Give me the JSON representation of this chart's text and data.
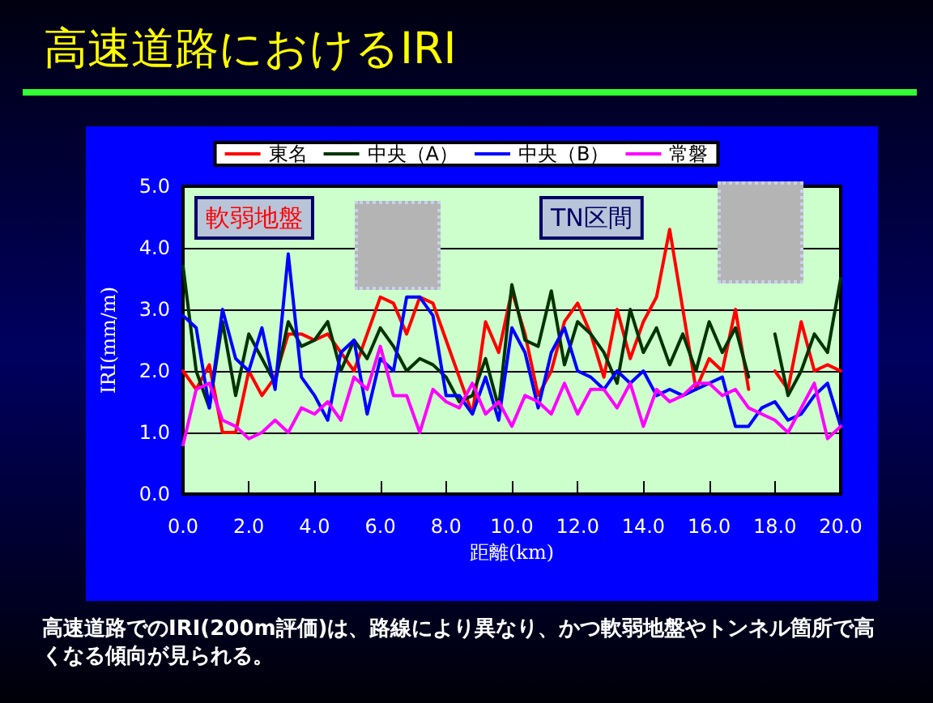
{
  "chart_data": {
    "type": "line",
    "title": "高速道路におけるIRI",
    "xlabel": "距離(km)",
    "ylabel": "IRI(mm/m)",
    "xlim": [
      0,
      20
    ],
    "xticks": [
      {
        "value": 0,
        "label": "0.0"
      },
      {
        "value": 2,
        "label": "2.0"
      },
      {
        "value": 4,
        "label": "4.0"
      },
      {
        "value": 6,
        "label": "6.0"
      },
      {
        "value": 8,
        "label": "8.0"
      },
      {
        "value": 10,
        "label": "10.0"
      },
      {
        "value": 12,
        "label": "12.0"
      },
      {
        "value": 14,
        "label": "14.0"
      },
      {
        "value": 16,
        "label": "16.0"
      },
      {
        "value": 18,
        "label": "18.0"
      },
      {
        "value": 20,
        "label": "20.0"
      }
    ],
    "ylim": [
      0,
      5
    ],
    "yticks": [
      {
        "value": 0,
        "label": "0.0"
      },
      {
        "value": 1,
        "label": "1.0"
      },
      {
        "value": 2,
        "label": "2.0"
      },
      {
        "value": 3,
        "label": "3.0"
      },
      {
        "value": 4,
        "label": "4.0"
      },
      {
        "value": 5,
        "label": "5.0"
      }
    ],
    "grid": "y",
    "legend": "top",
    "marker": "none",
    "line_style": "solid",
    "x": [
      0,
      0.4,
      0.8,
      1.2,
      1.6,
      2,
      2.4,
      2.8,
      3.2,
      3.6,
      4,
      4.4,
      4.8,
      5.2,
      5.6,
      6,
      6.4,
      6.8,
      7.2,
      7.6,
      8,
      8.4,
      8.8,
      9.2,
      9.6,
      10,
      10.4,
      10.8,
      11.2,
      11.6,
      12,
      12.4,
      12.8,
      13.2,
      13.6,
      14,
      14.4,
      14.8,
      15.2,
      15.6,
      16,
      16.4,
      16.8,
      17.2,
      17.6,
      18,
      18.4,
      18.8,
      19.2,
      19.6,
      20
    ],
    "series": [
      {
        "name": "東名",
        "color": "#ff0000",
        "values": [
          2.0,
          1.7,
          2.1,
          1.0,
          1.0,
          2.0,
          1.6,
          1.9,
          2.6,
          2.6,
          2.5,
          2.6,
          2.3,
          2.0,
          2.6,
          3.2,
          3.1,
          2.6,
          3.2,
          3.1,
          2.5,
          1.9,
          1.3,
          2.8,
          2.3,
          3.3,
          2.6,
          1.6,
          2.0,
          2.8,
          3.1,
          2.6,
          1.9,
          3.0,
          2.2,
          2.8,
          3.2,
          4.3,
          3.0,
          1.7,
          2.2,
          2.0,
          3.0,
          1.7,
          null,
          2.0,
          1.7,
          2.8,
          2.0,
          2.1,
          2.0
        ]
      },
      {
        "name": "中央（A）",
        "color": "#003300",
        "values": [
          3.7,
          2.0,
          1.4,
          2.8,
          1.6,
          2.6,
          2.2,
          1.8,
          2.8,
          2.4,
          2.5,
          2.8,
          2.0,
          2.5,
          2.2,
          2.7,
          2.4,
          2.0,
          2.2,
          2.1,
          1.9,
          1.5,
          1.6,
          2.2,
          1.4,
          3.4,
          2.5,
          2.4,
          3.3,
          2.1,
          2.8,
          2.6,
          2.3,
          1.8,
          3.0,
          2.3,
          2.7,
          2.1,
          2.6,
          2.0,
          2.8,
          2.3,
          2.7,
          1.9,
          null,
          2.6,
          1.6,
          2.0,
          2.6,
          2.3,
          3.5
        ]
      },
      {
        "name": "中央（B）",
        "color": "#0000ff",
        "values": [
          2.9,
          2.7,
          1.4,
          3.0,
          2.2,
          2.0,
          2.7,
          1.7,
          3.9,
          1.9,
          1.6,
          1.2,
          2.3,
          2.5,
          1.3,
          2.2,
          2.0,
          3.2,
          3.2,
          2.9,
          1.6,
          1.6,
          1.3,
          1.9,
          1.2,
          2.7,
          2.3,
          1.4,
          2.3,
          2.7,
          2.0,
          1.9,
          1.7,
          2.0,
          1.8,
          2.0,
          1.6,
          1.7,
          1.6,
          1.7,
          1.8,
          1.9,
          1.1,
          1.1,
          1.4,
          1.5,
          1.2,
          1.3,
          1.6,
          1.8,
          1.1
        ]
      },
      {
        "name": "常磐",
        "color": "#ff00ff",
        "values": [
          0.8,
          1.7,
          1.8,
          1.2,
          1.1,
          0.9,
          1.0,
          1.2,
          1.0,
          1.4,
          1.3,
          1.5,
          1.2,
          1.9,
          1.7,
          2.4,
          1.6,
          1.6,
          1.0,
          1.7,
          1.5,
          1.4,
          1.8,
          1.3,
          1.5,
          1.1,
          1.6,
          1.5,
          1.3,
          1.8,
          1.3,
          1.7,
          1.7,
          1.4,
          1.8,
          1.1,
          1.7,
          1.5,
          1.6,
          1.8,
          1.8,
          1.6,
          1.7,
          1.4,
          1.3,
          1.2,
          1.0,
          1.4,
          1.8,
          0.9,
          1.1
        ]
      }
    ],
    "annotations": [
      "軟弱地盤",
      "TN区間",
      "高速道路でのIRI(200m評価)は、路線により異なり、かつ軟弱地盤やトンネル箇所で高くなる傾向が見られる。"
    ]
  }
}
